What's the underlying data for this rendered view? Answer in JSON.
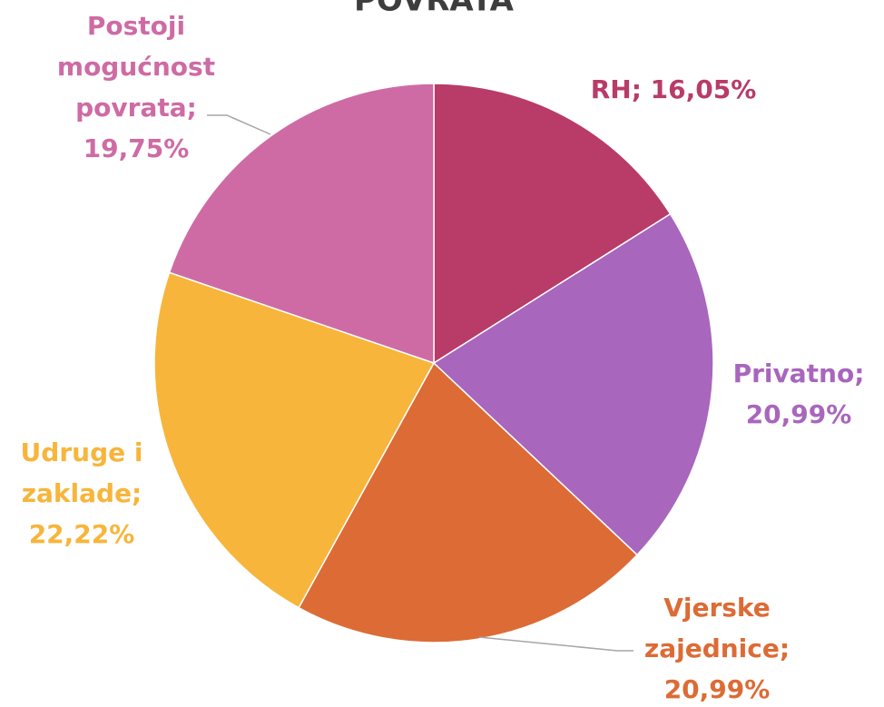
{
  "chart_data": {
    "type": "pie",
    "title": "POVRATA",
    "values": [
      16.05,
      20.99,
      20.99,
      22.22,
      19.75
    ],
    "value_labels": [
      [
        "RH; 16,05%"
      ],
      [
        "Privatno;",
        "20,99%"
      ],
      [
        "Vjerske",
        "zajednice;",
        "20,99%"
      ],
      [
        "Udruge i",
        "zaklade;",
        "22,22%"
      ],
      [
        "Postoji",
        "mogućnost",
        "povrata;",
        "19,75%"
      ]
    ],
    "colors": [
      "#b83b68",
      "#a866bd",
      "#dd6b35",
      "#f7b53b",
      "#ce6ba4"
    ]
  }
}
